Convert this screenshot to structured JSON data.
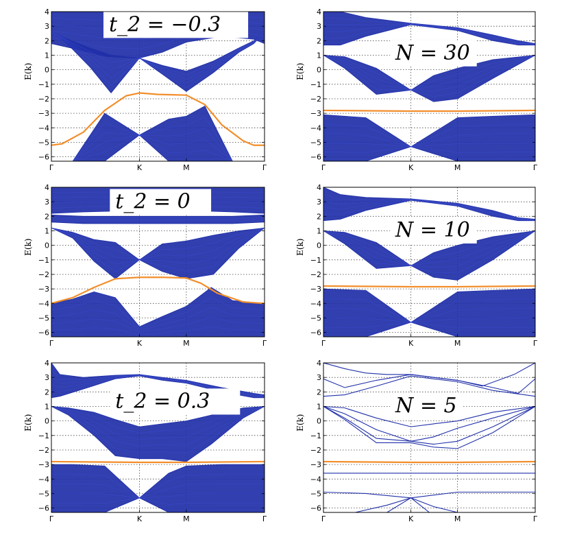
{
  "colors": {
    "bulk": "#1f2fa8",
    "edge": "#f28e2b",
    "grid": "#444444"
  },
  "chart_data": [
    {
      "type": "line",
      "panel": "t2=-0.3",
      "annotation": "t_2 = −0.3",
      "ylabel": "E(k)",
      "ylim": [
        -6.3,
        4
      ],
      "yticks": [
        -6,
        -5,
        -4,
        -3,
        -2,
        -1,
        0,
        1,
        2,
        3,
        4
      ],
      "xticks": [
        "Γ",
        "K",
        "M",
        "Γ"
      ],
      "xtick_pos": [
        0,
        0.413,
        0.633,
        1
      ],
      "bands": [
        {
          "name": "upper bulk band",
          "x": [
            0,
            0.12,
            0.26,
            0.413,
            0.52,
            0.633,
            0.8,
            0.95,
            1
          ],
          "top": [
            4,
            4,
            4,
            4,
            4,
            4,
            4,
            4,
            4
          ],
          "bottom": [
            1.8,
            1.4,
            0.9,
            0.8,
            1.2,
            1.9,
            2.3,
            2.1,
            1.8
          ]
        },
        {
          "name": "middle bulk band",
          "x": [
            0,
            0.06,
            0.18,
            0.28,
            0.413,
            0.52,
            0.633,
            0.76,
            0.88,
            0.95,
            1
          ],
          "top": [
            2.6,
            2.2,
            1.5,
            1.0,
            0.8,
            0.3,
            -0.1,
            0.6,
            1.5,
            2.0,
            2.6
          ],
          "bottom": [
            2.6,
            2.0,
            0.2,
            -1.6,
            0.8,
            -0.3,
            -1.5,
            -0.2,
            1.2,
            1.8,
            2.6
          ]
        },
        {
          "name": "lower bulk band",
          "x": [
            0,
            0.1,
            0.25,
            0.413,
            0.55,
            0.633,
            0.72,
            0.85,
            1
          ],
          "top": [
            -6.3,
            -6.3,
            -3.0,
            -4.5,
            -3.4,
            -3.2,
            -2.5,
            -6.3,
            -6.3
          ],
          "bottom": [
            -6.3,
            -6.3,
            -6.3,
            -4.5,
            -6.3,
            -6.3,
            -6.3,
            -6.3,
            -6.3
          ]
        }
      ],
      "edge_state": {
        "x": [
          0,
          0.05,
          0.15,
          0.25,
          0.35,
          0.413,
          0.5,
          0.633,
          0.72,
          0.8,
          0.9,
          0.95,
          1
        ],
        "y": [
          -5.2,
          -5.1,
          -4.3,
          -2.8,
          -1.8,
          -1.6,
          -1.7,
          -1.75,
          -2.4,
          -3.8,
          -4.9,
          -5.2,
          -5.2
        ]
      }
    },
    {
      "type": "line",
      "panel": "N=30",
      "annotation": "N = 30",
      "ylabel": "E(k)",
      "ylim": [
        -6.3,
        4
      ],
      "yticks": [
        -6,
        -5,
        -4,
        -3,
        -2,
        -1,
        0,
        1,
        2,
        3,
        4
      ],
      "xticks": [
        "Γ",
        "K",
        "M",
        "Γ"
      ],
      "xtick_pos": [
        0,
        0.413,
        0.633,
        1
      ],
      "bands": [
        {
          "name": "upper bulk band",
          "x": [
            0,
            0.08,
            0.2,
            0.413,
            0.633,
            0.8,
            0.92,
            1
          ],
          "top": [
            4,
            4,
            3.6,
            3.2,
            2.9,
            2.4,
            2.0,
            1.8
          ],
          "bottom": [
            1.7,
            1.7,
            2.3,
            3.1,
            2.7,
            2.0,
            1.7,
            1.7
          ]
        },
        {
          "name": "middle bulk band",
          "x": [
            0,
            0.1,
            0.25,
            0.413,
            0.52,
            0.633,
            0.8,
            1
          ],
          "top": [
            1.0,
            0.9,
            0.1,
            -1.4,
            -0.4,
            0.1,
            0.7,
            1.0
          ],
          "bottom": [
            1.0,
            0.1,
            -1.7,
            -1.4,
            -2.2,
            -2.0,
            -0.6,
            1.0
          ]
        },
        {
          "name": "lower bulk band",
          "x": [
            0,
            0.2,
            0.413,
            0.633,
            0.8,
            1
          ],
          "top": [
            -3.1,
            -3.3,
            -5.3,
            -3.3,
            -3.2,
            -3.1
          ],
          "bottom": [
            -6.3,
            -6.3,
            -5.3,
            -6.3,
            -6.3,
            -6.3
          ]
        }
      ],
      "edge_state": {
        "x": [
          0,
          0.413,
          0.633,
          1
        ],
        "y": [
          -2.8,
          -2.85,
          -2.85,
          -2.8
        ]
      }
    },
    {
      "type": "line",
      "panel": "t2=0",
      "annotation": "t_2 = 0",
      "ylabel": "E(k)",
      "ylim": [
        -6.3,
        4
      ],
      "yticks": [
        -6,
        -5,
        -4,
        -3,
        -2,
        -1,
        0,
        1,
        2,
        3,
        4
      ],
      "xticks": [
        "Γ",
        "K",
        "M",
        "Γ"
      ],
      "xtick_pos": [
        0,
        0.413,
        0.633,
        1
      ],
      "bands": [
        {
          "name": "upper bulk band",
          "x": [
            0,
            0.15,
            0.413,
            0.633,
            0.85,
            1
          ],
          "top": [
            4,
            4,
            4,
            4,
            4,
            4
          ],
          "bottom": [
            2.2,
            2.3,
            2.4,
            2.4,
            2.3,
            2.2
          ]
        },
        {
          "name": "flat bulk band",
          "x": [
            0,
            0.15,
            0.413,
            0.633,
            0.85,
            1
          ],
          "top": [
            2.1,
            2.0,
            2.0,
            2.0,
            2.0,
            2.1
          ],
          "bottom": [
            1.6,
            1.5,
            1.5,
            1.5,
            1.5,
            1.6
          ]
        },
        {
          "name": "middle bulk band",
          "x": [
            0,
            0.1,
            0.2,
            0.3,
            0.413,
            0.52,
            0.633,
            0.76,
            0.88,
            1
          ],
          "top": [
            1.2,
            0.9,
            0.4,
            0.2,
            -1.0,
            0.1,
            0.3,
            0.7,
            1.0,
            1.2
          ],
          "bottom": [
            1.2,
            0.5,
            -1.1,
            -2.3,
            -1.0,
            -1.8,
            -2.3,
            -2.0,
            -0.2,
            1.2
          ]
        },
        {
          "name": "lower bulk band",
          "x": [
            0,
            0.1,
            0.2,
            0.3,
            0.413,
            0.52,
            0.633,
            0.75,
            0.85,
            1
          ],
          "top": [
            -4.0,
            -3.7,
            -3.2,
            -3.6,
            -5.6,
            -4.9,
            -4.2,
            -2.9,
            -3.8,
            -4.0
          ],
          "bottom": [
            -6.3,
            -6.3,
            -6.3,
            -6.3,
            -6.3,
            -6.3,
            -6.3,
            -6.3,
            -6.3,
            -6.3
          ]
        }
      ],
      "edge_state": {
        "x": [
          0,
          0.1,
          0.2,
          0.3,
          0.413,
          0.52,
          0.633,
          0.7,
          0.78,
          0.9,
          1
        ],
        "y": [
          -4.0,
          -3.6,
          -2.9,
          -2.3,
          -2.2,
          -2.2,
          -2.25,
          -2.6,
          -3.3,
          -3.9,
          -4.0
        ]
      }
    },
    {
      "type": "line",
      "panel": "N=10",
      "annotation": "N = 10",
      "ylabel": "E(k)",
      "ylim": [
        -6.3,
        4
      ],
      "yticks": [
        -6,
        -5,
        -4,
        -3,
        -2,
        -1,
        0,
        1,
        2,
        3,
        4
      ],
      "xticks": [
        "Γ",
        "K",
        "M",
        "Γ"
      ],
      "xtick_pos": [
        0,
        0.413,
        0.633,
        1
      ],
      "bands": [
        {
          "name": "upper bulk band",
          "x": [
            0,
            0.08,
            0.2,
            0.413,
            0.633,
            0.8,
            0.92,
            1
          ],
          "top": [
            4,
            3.5,
            3.3,
            3.2,
            2.9,
            2.4,
            1.9,
            1.8
          ],
          "bottom": [
            1.7,
            1.8,
            2.4,
            3.1,
            2.7,
            2.0,
            1.7,
            1.7
          ]
        },
        {
          "name": "middle bulk band",
          "x": [
            0,
            0.1,
            0.25,
            0.413,
            0.52,
            0.633,
            0.8,
            1
          ],
          "top": [
            1.0,
            0.9,
            0.2,
            -1.4,
            -0.5,
            0.0,
            0.6,
            1.0
          ],
          "bottom": [
            1.0,
            0.1,
            -1.6,
            -1.4,
            -2.2,
            -2.4,
            -1.0,
            1.0
          ]
        },
        {
          "name": "lower bulk band",
          "x": [
            0,
            0.2,
            0.413,
            0.633,
            0.8,
            1
          ],
          "top": [
            -3.0,
            -3.1,
            -5.3,
            -3.2,
            -3.1,
            -3.0
          ],
          "bottom": [
            -6.3,
            -6.3,
            -5.3,
            -6.3,
            -6.3,
            -6.3
          ]
        }
      ],
      "edge_state": {
        "x": [
          0,
          0.413,
          0.633,
          1
        ],
        "y": [
          -2.8,
          -2.85,
          -2.85,
          -2.8
        ]
      }
    },
    {
      "type": "line",
      "panel": "t2=0.3",
      "annotation": "t_2 = 0.3",
      "ylabel": "E(k)",
      "ylim": [
        -6.3,
        4
      ],
      "yticks": [
        -6,
        -5,
        -4,
        -3,
        -2,
        -1,
        0,
        1,
        2,
        3,
        4
      ],
      "xticks": [
        "Γ",
        "K",
        "M",
        "Γ"
      ],
      "xtick_pos": [
        0,
        0.413,
        0.633,
        1
      ],
      "bands": [
        {
          "name": "upper bulk band",
          "x": [
            0,
            0.04,
            0.15,
            0.3,
            0.413,
            0.52,
            0.633,
            0.8,
            0.95,
            1
          ],
          "top": [
            4,
            3.2,
            3.0,
            3.15,
            3.2,
            3.0,
            2.8,
            2.3,
            1.9,
            1.8
          ],
          "bottom": [
            1.6,
            1.7,
            2.2,
            2.9,
            3.1,
            2.8,
            2.6,
            2.0,
            1.6,
            1.6
          ]
        },
        {
          "name": "middle bulk band",
          "x": [
            0,
            0.08,
            0.2,
            0.3,
            0.413,
            0.52,
            0.633,
            0.75,
            0.9,
            1
          ],
          "top": [
            1.0,
            0.9,
            0.6,
            0.1,
            -0.4,
            -0.2,
            0.0,
            0.4,
            0.9,
            1.0
          ],
          "bottom": [
            1.0,
            0.4,
            -1.0,
            -2.4,
            -2.6,
            -2.6,
            -2.8,
            -1.6,
            0.2,
            1.0
          ]
        },
        {
          "name": "lower bulk band",
          "x": [
            0,
            0.1,
            0.25,
            0.413,
            0.55,
            0.633,
            0.8,
            1
          ],
          "top": [
            -3.0,
            -3.0,
            -3.1,
            -5.3,
            -3.6,
            -3.1,
            -3.0,
            -3.0
          ],
          "bottom": [
            -6.3,
            -6.3,
            -6.3,
            -5.3,
            -6.3,
            -6.3,
            -6.3,
            -6.3
          ]
        }
      ],
      "edge_state": {
        "x": [
          0,
          0.413,
          0.633,
          1
        ],
        "y": [
          -2.8,
          -2.85,
          -2.85,
          -2.8
        ]
      }
    },
    {
      "type": "line",
      "panel": "N=5",
      "annotation": "N = 5",
      "ylabel": "E(k)",
      "ylim": [
        -6.3,
        4
      ],
      "yticks": [
        -6,
        -5,
        -4,
        -3,
        -2,
        -1,
        0,
        1,
        2,
        3,
        4
      ],
      "xticks": [
        "Γ",
        "K",
        "M",
        "Γ"
      ],
      "xtick_pos": [
        0,
        0.413,
        0.633,
        1
      ],
      "lines": [
        {
          "x": [
            0,
            0.1,
            0.2,
            0.3,
            0.413,
            0.52,
            0.633,
            0.75,
            0.9,
            1
          ],
          "y": [
            4.0,
            3.6,
            3.3,
            3.2,
            3.2,
            3.0,
            2.8,
            2.4,
            3.2,
            4.0
          ]
        },
        {
          "x": [
            0,
            0.1,
            0.25,
            0.413,
            0.52,
            0.633,
            0.8,
            0.92,
            1
          ],
          "y": [
            2.9,
            2.3,
            2.8,
            3.2,
            3.0,
            2.8,
            2.3,
            1.9,
            2.9
          ]
        },
        {
          "x": [
            0,
            0.1,
            0.25,
            0.413,
            0.52,
            0.633,
            0.8,
            1
          ],
          "y": [
            1.7,
            1.8,
            2.4,
            3.1,
            2.9,
            2.7,
            2.1,
            1.7
          ]
        },
        {
          "x": [
            0,
            0.1,
            0.25,
            0.413,
            0.52,
            0.633,
            0.8,
            1
          ],
          "y": [
            1.0,
            0.9,
            0.2,
            -0.4,
            -0.2,
            0.0,
            0.6,
            1.0
          ]
        },
        {
          "x": [
            0,
            0.1,
            0.25,
            0.413,
            0.52,
            0.633,
            0.8,
            1
          ],
          "y": [
            1.0,
            0.5,
            -0.6,
            -1.4,
            -1.1,
            -0.5,
            0.2,
            1.0
          ]
        },
        {
          "x": [
            0,
            0.1,
            0.25,
            0.413,
            0.52,
            0.633,
            0.8,
            1
          ],
          "y": [
            1.0,
            0.2,
            -1.2,
            -1.4,
            -1.6,
            -1.4,
            -0.4,
            1.0
          ]
        },
        {
          "x": [
            0,
            0.1,
            0.25,
            0.413,
            0.52,
            0.633,
            0.8,
            1
          ],
          "y": [
            1.0,
            0.1,
            -1.5,
            -1.5,
            -1.8,
            -1.9,
            -0.8,
            1.0
          ]
        },
        {
          "x": [
            0,
            0.2,
            0.413,
            0.633,
            0.8,
            1
          ],
          "y": [
            -3.6,
            -3.6,
            -3.6,
            -3.6,
            -3.6,
            -3.6
          ]
        },
        {
          "x": [
            0,
            0.2,
            0.413,
            0.633,
            0.8,
            1
          ],
          "y": [
            -4.9,
            -5.0,
            -5.3,
            -4.9,
            -4.9,
            -4.9
          ]
        },
        {
          "x": [
            0,
            0.15,
            0.3,
            0.413,
            0.52,
            0.633,
            0.8,
            1
          ],
          "y": [
            -6.3,
            -6.3,
            -5.8,
            -5.3,
            -5.9,
            -6.3,
            -6.3,
            -6.3
          ]
        },
        {
          "x": [
            0,
            0.2,
            0.3,
            0.413,
            0.5,
            0.6,
            0.633
          ],
          "y": [
            -6.3,
            -6.3,
            -6.3,
            -5.3,
            -6.3,
            -6.3,
            -6.3
          ]
        }
      ],
      "edge_state": {
        "x": [
          0,
          0.413,
          0.633,
          1
        ],
        "y": [
          -2.8,
          -2.85,
          -2.85,
          -2.8
        ]
      }
    }
  ]
}
